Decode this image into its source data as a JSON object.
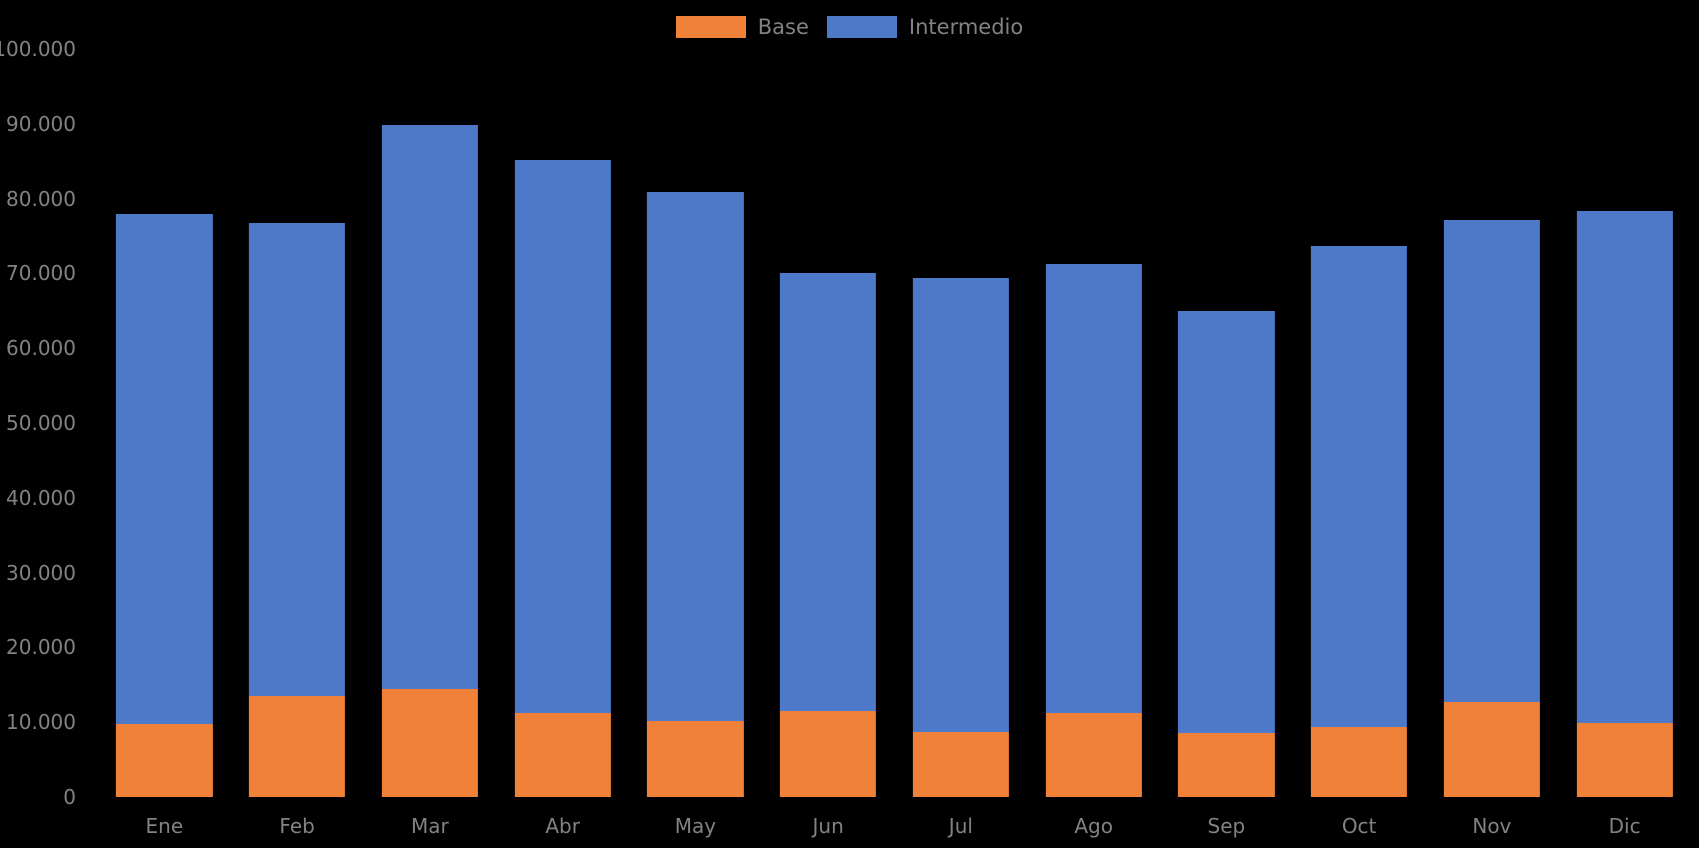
{
  "chart_data": {
    "type": "bar",
    "stacked": true,
    "title": "",
    "xlabel": "",
    "ylabel": "",
    "categories": [
      "Ene",
      "Feb",
      "Mar",
      "Abr",
      "May",
      "Jun",
      "Jul",
      "Ago",
      "Sep",
      "Oct",
      "Nov",
      "Dic"
    ],
    "series": [
      {
        "name": "Base",
        "color": "#f08138",
        "values": [
          9800,
          13500,
          14400,
          11200,
          10200,
          11500,
          8700,
          11200,
          8500,
          9400,
          12700,
          9900
        ]
      },
      {
        "name": "Intermedio",
        "color": "#4e79c9",
        "values": [
          68100,
          63200,
          75400,
          74000,
          70700,
          58600,
          60700,
          60000,
          56500,
          64300,
          64500,
          68500
        ]
      }
    ],
    "stack_totals": [
      77900,
      76700,
      89800,
      85200,
      80900,
      70100,
      69400,
      71200,
      65000,
      73700,
      77200,
      78400
    ],
    "ylim": [
      0,
      100000
    ],
    "y_tick_step": 10000,
    "y_tick_labels": [
      "0",
      "10.000",
      "20.000",
      "30.000",
      "40.000",
      "50.000",
      "60.000",
      "70.000",
      "80.000",
      "90.000",
      "100.000"
    ],
    "grid": false,
    "legend_position": "top-center",
    "background_color": "#000000",
    "text_color": "#828282"
  }
}
